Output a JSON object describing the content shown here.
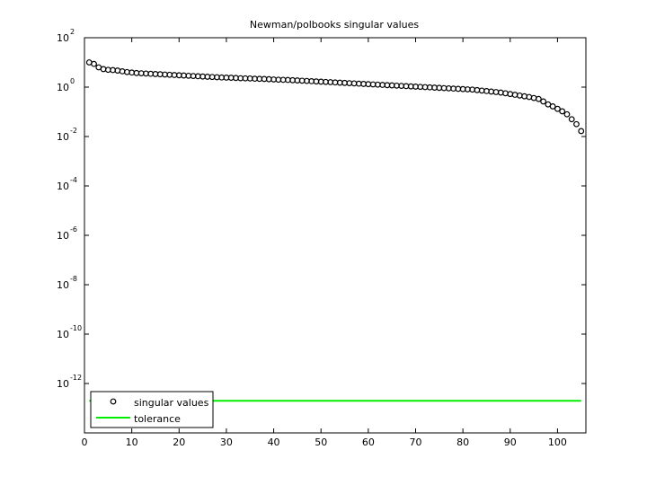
{
  "chart_data": {
    "type": "scatter",
    "title": "Newman/polbooks singular values",
    "xlabel": "",
    "ylabel": "",
    "xlim": [
      0,
      106
    ],
    "ylim_log10": [
      -14,
      2
    ],
    "y_scale": "log",
    "x_ticks": [
      "0",
      "10",
      "20",
      "30",
      "40",
      "50",
      "60",
      "70",
      "80",
      "90",
      "100"
    ],
    "x_tick_values": [
      0,
      10,
      20,
      30,
      40,
      50,
      60,
      70,
      80,
      90,
      100
    ],
    "y_tick_exponents": [
      2,
      0,
      -2,
      -4,
      -6,
      -8,
      -10,
      -12
    ],
    "y_tick_base": "10",
    "y_tick_powers": [
      "2",
      "0",
      "-2",
      "-4",
      "-6",
      "-8",
      "-10",
      "-12"
    ],
    "grid": false,
    "legend_position": "bottom-left",
    "colors": {
      "markers": "#000000",
      "tolerance": "#00ee00",
      "axes": "#000000"
    },
    "series": [
      {
        "name": "singular values",
        "marker": "circle",
        "x": [
          1,
          2,
          3,
          4,
          5,
          6,
          7,
          8,
          9,
          10,
          11,
          12,
          13,
          14,
          15,
          16,
          17,
          18,
          19,
          20,
          21,
          22,
          23,
          24,
          25,
          26,
          27,
          28,
          29,
          30,
          31,
          32,
          33,
          34,
          35,
          36,
          37,
          38,
          39,
          40,
          41,
          42,
          43,
          44,
          45,
          46,
          47,
          48,
          49,
          50,
          51,
          52,
          53,
          54,
          55,
          56,
          57,
          58,
          59,
          60,
          61,
          62,
          63,
          64,
          65,
          66,
          67,
          68,
          69,
          70,
          71,
          72,
          73,
          74,
          75,
          76,
          77,
          78,
          79,
          80,
          81,
          82,
          83,
          84,
          85,
          86,
          87,
          88,
          89,
          90,
          91,
          92,
          93,
          94,
          95,
          96,
          97,
          98,
          99,
          100,
          101,
          102,
          103,
          104,
          105
        ],
        "y_log10": [
          1.0,
          0.94,
          0.8,
          0.73,
          0.7,
          0.69,
          0.67,
          0.64,
          0.61,
          0.59,
          0.57,
          0.56,
          0.55,
          0.54,
          0.53,
          0.52,
          0.51,
          0.5,
          0.49,
          0.48,
          0.47,
          0.46,
          0.45,
          0.44,
          0.43,
          0.42,
          0.41,
          0.4,
          0.39,
          0.385,
          0.38,
          0.37,
          0.36,
          0.355,
          0.35,
          0.34,
          0.335,
          0.33,
          0.32,
          0.31,
          0.3,
          0.295,
          0.29,
          0.28,
          0.27,
          0.26,
          0.25,
          0.24,
          0.23,
          0.22,
          0.21,
          0.2,
          0.19,
          0.18,
          0.17,
          0.16,
          0.15,
          0.14,
          0.13,
          0.12,
          0.11,
          0.1,
          0.09,
          0.08,
          0.07,
          0.06,
          0.05,
          0.04,
          0.03,
          0.02,
          0.01,
          0.0,
          -0.01,
          -0.02,
          -0.03,
          -0.04,
          -0.05,
          -0.06,
          -0.07,
          -0.08,
          -0.09,
          -0.1,
          -0.12,
          -0.14,
          -0.16,
          -0.18,
          -0.2,
          -0.22,
          -0.25,
          -0.28,
          -0.31,
          -0.34,
          -0.37,
          -0.4,
          -0.44,
          -0.48,
          -0.58,
          -0.7,
          -0.78,
          -0.88,
          -0.98,
          -1.1,
          -1.3,
          -1.5,
          -1.78
        ]
      },
      {
        "name": "tolerance",
        "marker": "line",
        "x": [
          1,
          105
        ],
        "y_log10": [
          -12.7,
          -12.7
        ]
      }
    ]
  }
}
